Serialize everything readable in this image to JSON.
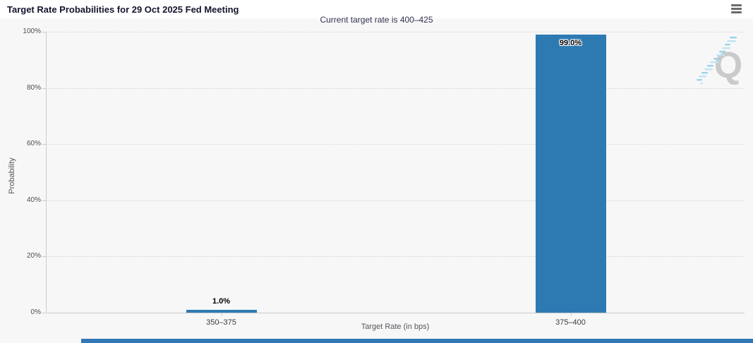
{
  "header": {
    "menu_icon": "hamburger-icon"
  },
  "watermark": {
    "letter": "Q"
  },
  "chart_data": {
    "type": "bar",
    "title": "Target Rate Probabilities for 29 Oct 2025 Fed Meeting",
    "subtitle": "Current target rate is 400–425",
    "categories": [
      "350–375",
      "375–400"
    ],
    "values": [
      1.0,
      99.0
    ],
    "data_labels": [
      "1.0%",
      "99.0%"
    ],
    "xlabel": "Target Rate (in bps)",
    "ylabel": "Probability",
    "ylim": [
      0,
      100
    ],
    "ytick_values": [
      0,
      20,
      40,
      60,
      80,
      100
    ],
    "ytick_labels": [
      "0%",
      "20%",
      "40%",
      "60%",
      "80%",
      "100%"
    ],
    "grid": "dotted-horizontal",
    "legend": "none",
    "bar_color": "#2d7ab3"
  },
  "colors": {
    "bar": "#2d7ab3",
    "chart_background": "#f7f7f7",
    "header_background": "#ffffff",
    "bottom_strip": "#3277b6",
    "watermark_gray": "#c6c6c6",
    "watermark_blue": "#8ecfea"
  }
}
